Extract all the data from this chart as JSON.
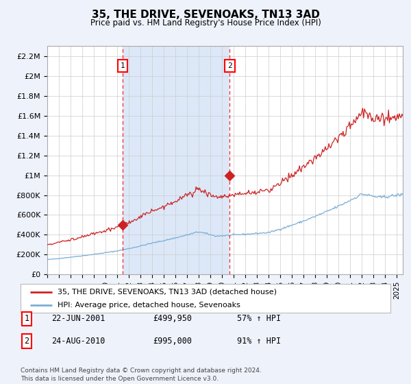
{
  "title": "35, THE DRIVE, SEVENOAKS, TN13 3AD",
  "subtitle": "Price paid vs. HM Land Registry's House Price Index (HPI)",
  "background_color": "#eef2fb",
  "plot_bg_color": "#ffffff",
  "shade_color": "#dce8f8",
  "ylim": [
    0,
    2300000
  ],
  "yticks": [
    0,
    200000,
    400000,
    600000,
    800000,
    1000000,
    1200000,
    1400000,
    1600000,
    1800000,
    2000000,
    2200000
  ],
  "ytick_labels": [
    "£0",
    "£200K",
    "£400K",
    "£600K",
    "£800K",
    "£1M",
    "£1.2M",
    "£1.4M",
    "£1.6M",
    "£1.8M",
    "£2M",
    "£2.2M"
  ],
  "xmin": 1995.0,
  "xmax": 2025.5,
  "xticks": [
    1995,
    1996,
    1997,
    1998,
    1999,
    2000,
    2001,
    2002,
    2003,
    2004,
    2005,
    2006,
    2007,
    2008,
    2009,
    2010,
    2011,
    2012,
    2013,
    2014,
    2015,
    2016,
    2017,
    2018,
    2019,
    2020,
    2021,
    2022,
    2023,
    2024,
    2025
  ],
  "hpi_color": "#7aaed6",
  "price_color": "#cc2222",
  "marker1_x": 2001.47,
  "marker1_y": 499950,
  "marker2_x": 2010.65,
  "marker2_y": 995000,
  "sale1_date": "22-JUN-2001",
  "sale1_price": "£499,950",
  "sale1_hpi": "57% ↑ HPI",
  "sale2_date": "24-AUG-2010",
  "sale2_price": "£995,000",
  "sale2_hpi": "91% ↑ HPI",
  "legend_label1": "35, THE DRIVE, SEVENOAKS, TN13 3AD (detached house)",
  "legend_label2": "HPI: Average price, detached house, Sevenoaks",
  "footnote": "Contains HM Land Registry data © Crown copyright and database right 2024.\nThis data is licensed under the Open Government Licence v3.0.",
  "grid_color": "#cccccc"
}
